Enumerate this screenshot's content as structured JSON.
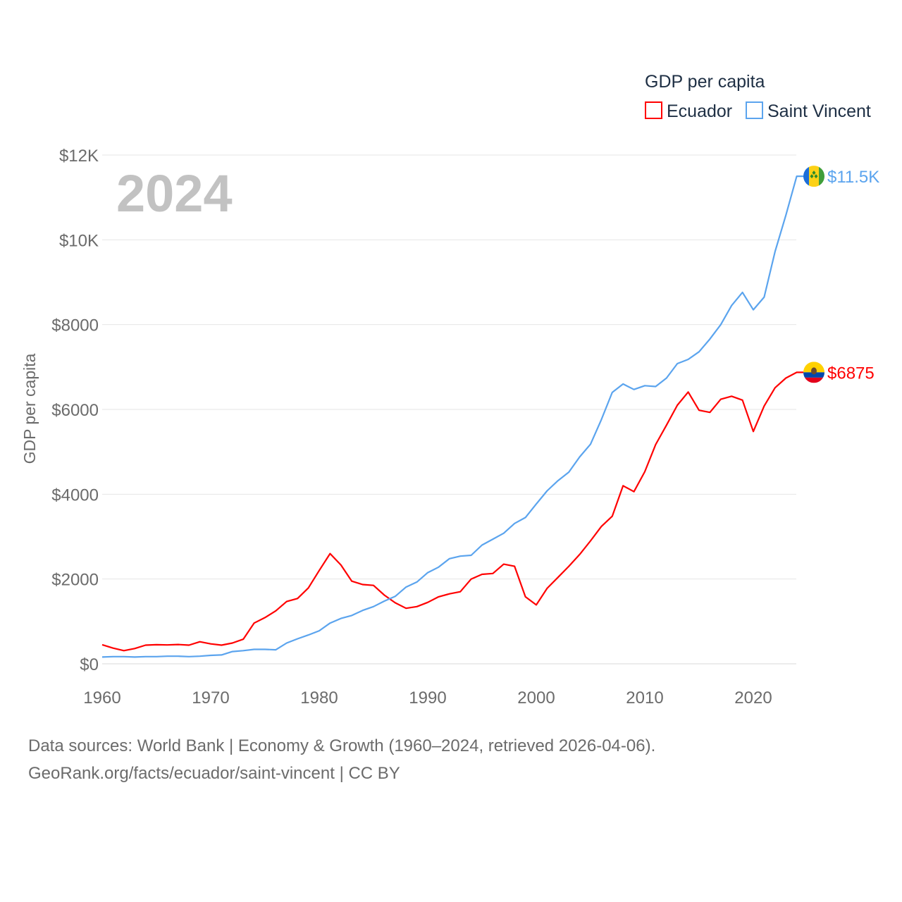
{
  "chart_data": {
    "type": "line",
    "title": "GDP per capita",
    "ylabel": "GDP per capita",
    "xlabel": "",
    "year_display": "2024",
    "xlim": [
      1960,
      2024
    ],
    "ylim": [
      0,
      12000
    ],
    "x_ticks": [
      "1960",
      "1970",
      "1980",
      "1990",
      "2000",
      "2010",
      "2020"
    ],
    "y_ticks": [
      {
        "value": 0,
        "label": "$0"
      },
      {
        "value": 2000,
        "label": "$2000"
      },
      {
        "value": 4000,
        "label": "$4000"
      },
      {
        "value": 6000,
        "label": "$6000"
      },
      {
        "value": 8000,
        "label": "$8000"
      },
      {
        "value": 10000,
        "label": "$10K"
      },
      {
        "value": 12000,
        "label": "$12K"
      }
    ],
    "grid": true,
    "legend_placement": "top-right",
    "x_start": 1960,
    "series": [
      {
        "name": "Ecuador",
        "color": "#ff0000",
        "end_label": "$6875",
        "flag": "ecuador-flag",
        "values": [
          450,
          370,
          310,
          360,
          440,
          450,
          445,
          455,
          440,
          520,
          470,
          440,
          490,
          580,
          960,
          1090,
          1250,
          1470,
          1540,
          1790,
          2200,
          2600,
          2330,
          1950,
          1870,
          1850,
          1620,
          1440,
          1310,
          1350,
          1450,
          1580,
          1650,
          1700,
          2000,
          2110,
          2130,
          2350,
          2300,
          1580,
          1390,
          1780,
          2040,
          2300,
          2580,
          2900,
          3240,
          3480,
          4200,
          4060,
          4530,
          5170,
          5630,
          6100,
          6410,
          5980,
          5930,
          6240,
          6310,
          6220,
          5480,
          6080,
          6510,
          6740,
          6875
        ]
      },
      {
        "name": "Saint Vincent",
        "color": "#5ba4ee",
        "end_label": "$11.5K",
        "flag": "saint-vincent-flag",
        "values": [
          160,
          170,
          170,
          160,
          170,
          170,
          180,
          180,
          170,
          180,
          200,
          210,
          290,
          310,
          340,
          340,
          330,
          490,
          590,
          680,
          780,
          960,
          1070,
          1140,
          1260,
          1350,
          1480,
          1590,
          1810,
          1930,
          2150,
          2280,
          2480,
          2540,
          2560,
          2800,
          2940,
          3080,
          3310,
          3450,
          3770,
          4080,
          4320,
          4520,
          4880,
          5180,
          5760,
          6400,
          6600,
          6470,
          6560,
          6540,
          6740,
          7080,
          7180,
          7360,
          7660,
          8000,
          8450,
          8760,
          8350,
          8650,
          9720,
          10580,
          11500
        ]
      }
    ]
  },
  "footer": {
    "line1": "Data sources: World Bank | Economy & Growth (1960–2024, retrieved 2026-04-06).",
    "line2": "GeoRank.org/facts/ecuador/saint-vincent | CC BY"
  }
}
